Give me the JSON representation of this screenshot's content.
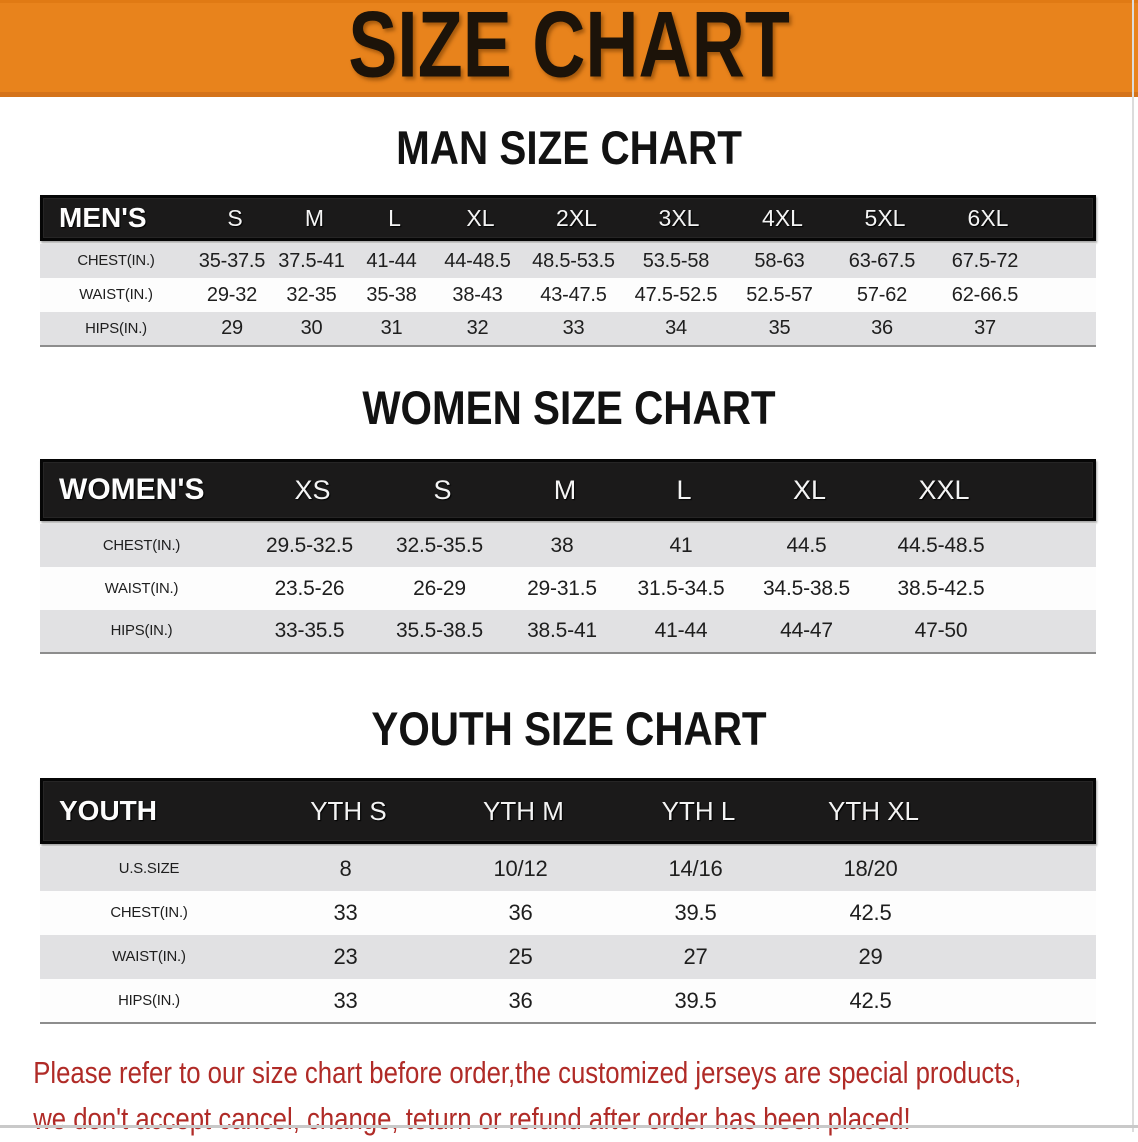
{
  "banner": {
    "title": "SIZE CHART",
    "bg_color": "#E8831C",
    "text_color": "#1c1309"
  },
  "sections": [
    {
      "title": "MAN SIZE CHART",
      "header_label": "MEN'S",
      "columns": [
        "S",
        "M",
        "L",
        "XL",
        "2XL",
        "3XL",
        "4XL",
        "5XL",
        "6XL"
      ],
      "rows": [
        {
          "label": "CHEST(IN.)",
          "values": [
            "35-37.5",
            "37.5-41",
            "41-44",
            "44-48.5",
            "48.5-53.5",
            "53.5-58",
            "58-63",
            "63-67.5",
            "67.5-72"
          ]
        },
        {
          "label": "WAIST(IN.)",
          "values": [
            "29-32",
            "32-35",
            "35-38",
            "38-43",
            "43-47.5",
            "47.5-52.5",
            "52.5-57",
            "57-62",
            "62-66.5"
          ]
        },
        {
          "label": "HIPS(IN.)",
          "values": [
            "29",
            "30",
            "31",
            "32",
            "33",
            "34",
            "35",
            "36",
            "37"
          ]
        }
      ]
    },
    {
      "title": "WOMEN SIZE CHART",
      "header_label": "WOMEN'S",
      "columns": [
        "XS",
        "S",
        "M",
        "L",
        "XL",
        "XXL"
      ],
      "rows": [
        {
          "label": "CHEST(IN.)",
          "values": [
            "29.5-32.5",
            "32.5-35.5",
            "38",
            "41",
            "44.5",
            "44.5-48.5"
          ]
        },
        {
          "label": "WAIST(IN.)",
          "values": [
            "23.5-26",
            "26-29",
            "29-31.5",
            "31.5-34.5",
            "34.5-38.5",
            "38.5-42.5"
          ]
        },
        {
          "label": "HIPS(IN.)",
          "values": [
            "33-35.5",
            "35.5-38.5",
            "38.5-41",
            "41-44",
            "44-47",
            "47-50"
          ]
        }
      ]
    },
    {
      "title": "YOUTH SIZE CHART",
      "header_label": "YOUTH",
      "columns": [
        "YTH S",
        "YTH M",
        "YTH L",
        "YTH XL"
      ],
      "rows": [
        {
          "label": "U.S.SIZE",
          "values": [
            "8",
            "10/12",
            "14/16",
            "18/20"
          ]
        },
        {
          "label": "CHEST(IN.)",
          "values": [
            "33",
            "36",
            "39.5",
            "42.5"
          ]
        },
        {
          "label": "WAIST(IN.)",
          "values": [
            "23",
            "25",
            "27",
            "29"
          ]
        },
        {
          "label": "HIPS(IN.)",
          "values": [
            "33",
            "36",
            "39.5",
            "42.5"
          ]
        }
      ]
    }
  ],
  "disclaimer": {
    "line1": "Please refer to our size chart before order,the customized jerseys are special products,",
    "line2": "we don't accept cancel, change, teturn or refund after order has been placed!",
    "color": "#B02B27"
  }
}
